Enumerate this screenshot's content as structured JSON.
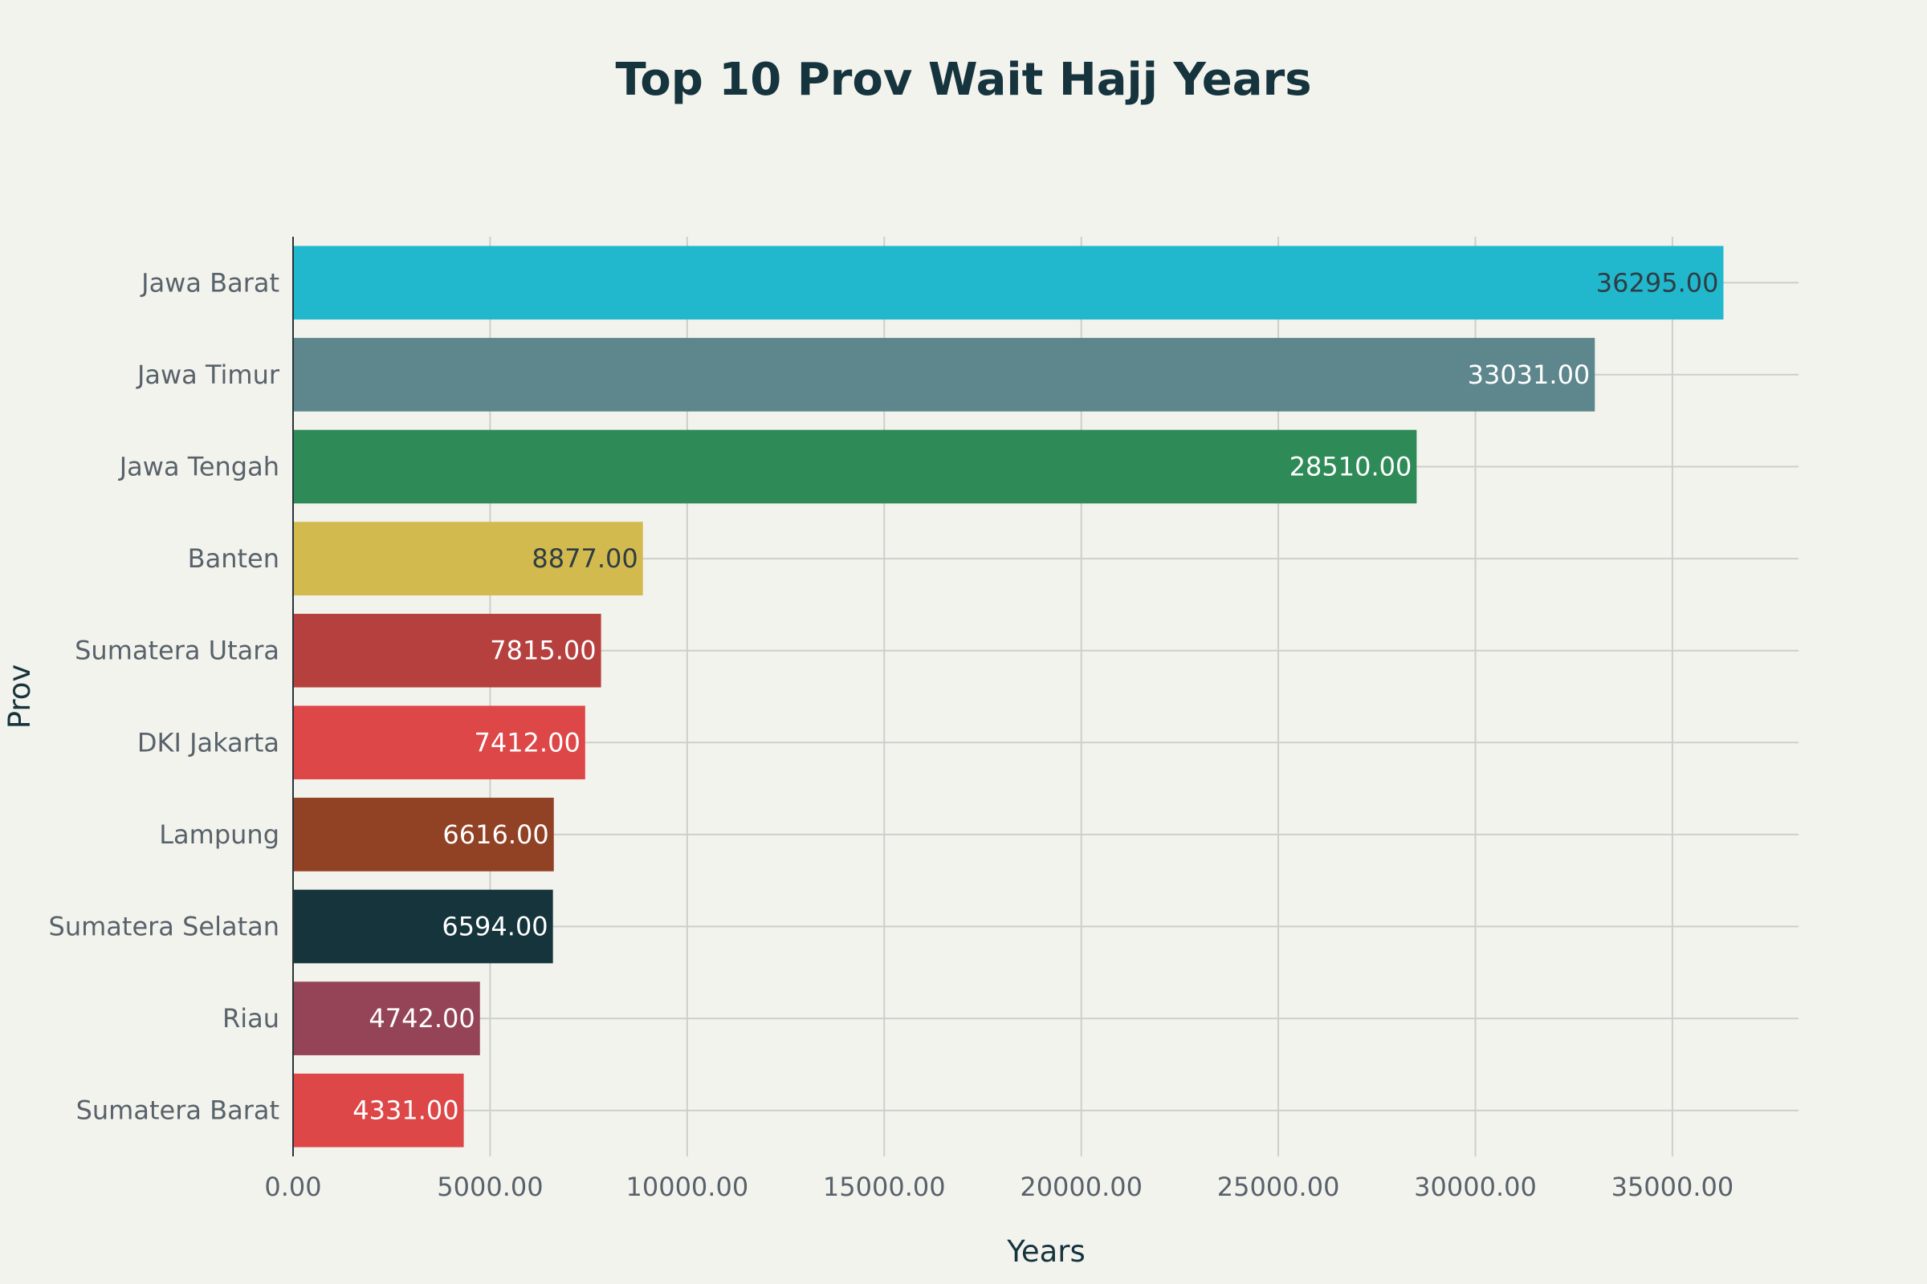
{
  "chart_data": {
    "type": "bar",
    "orientation": "horizontal",
    "title": "Top 10 Prov Wait Hajj Years",
    "xlabel": "Years",
    "ylabel": "Prov",
    "xlim": [
      0,
      38200
    ],
    "xticks": [
      0,
      5000,
      10000,
      15000,
      20000,
      25000,
      30000,
      35000
    ],
    "tick_decimals": 2,
    "grid": true,
    "legend": "none",
    "categories": [
      "Jawa Barat",
      "Jawa Timur",
      "Jawa Tengah",
      "Banten",
      "Sumatera Utara",
      "DKI Jakarta",
      "Lampung",
      "Sumatera Selatan",
      "Riau",
      "Sumatera Barat"
    ],
    "values": [
      36295,
      33031,
      28510,
      8877,
      7815,
      7412,
      6616,
      6594,
      4742,
      4331
    ],
    "value_labels": [
      "36295.00",
      "33031.00",
      "28510.00",
      "8877.00",
      "7815.00",
      "7412.00",
      "6616.00",
      "6594.00",
      "4742.00",
      "4331.00"
    ],
    "colors": [
      "#21b8cd",
      "#5d878d",
      "#2e8b57",
      "#d3ba4e",
      "#b6403d",
      "#dd4748",
      "#914124",
      "#15343c",
      "#944456",
      "#dd4748"
    ],
    "label_colors": [
      "#2f3d44",
      "#ffffff",
      "#ffffff",
      "#2f3d44",
      "#ffffff",
      "#ffffff",
      "#ffffff",
      "#ffffff",
      "#ffffff",
      "#ffffff"
    ]
  }
}
